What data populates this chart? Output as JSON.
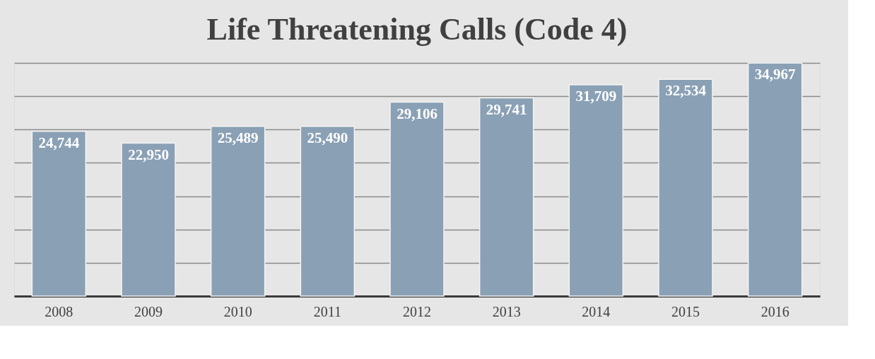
{
  "chart_data": {
    "type": "bar",
    "title": "Life Threatening Calls (Code 4)",
    "categories": [
      "2008",
      "2009",
      "2010",
      "2011",
      "2012",
      "2013",
      "2014",
      "2015",
      "2016"
    ],
    "values": [
      24744,
      22950,
      25489,
      25490,
      29106,
      29741,
      31709,
      32534,
      34967
    ],
    "color": "#8aa0b5",
    "value_labels": [
      "24,744",
      "22,950",
      "25,489",
      "25,490",
      "29,106",
      "29,741",
      "31,709",
      "32,534",
      "34,967"
    ],
    "tick_labels": "x",
    "grid": "y"
  }
}
